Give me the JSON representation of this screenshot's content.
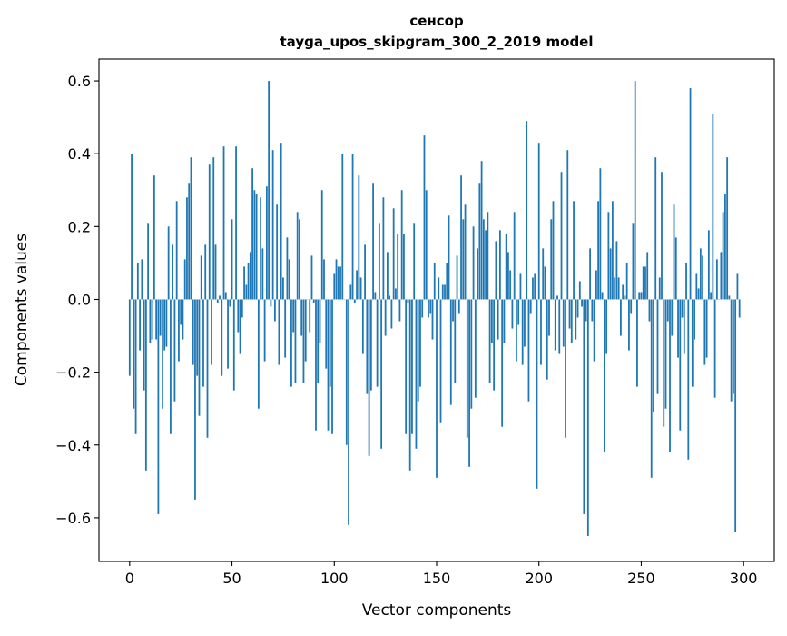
{
  "chart_data": {
    "type": "bar",
    "title": "сенсор",
    "subtitle": "tayga_upos_skipgram_300_2_2019 model",
    "xlabel": "Vector components",
    "ylabel": "Components values",
    "xlim": [
      -15,
      315
    ],
    "ylim": [
      -0.72,
      0.66
    ],
    "grid": false,
    "bar_color": "#1f77b4",
    "x_ticks": [
      0,
      50,
      100,
      150,
      200,
      250,
      300
    ],
    "x_tick_labels": [
      "0",
      "50",
      "100",
      "150",
      "200",
      "250",
      "300"
    ],
    "y_ticks": [
      -0.6,
      -0.4,
      -0.2,
      0.0,
      0.2,
      0.4,
      0.6
    ],
    "y_tick_labels": [
      "−0.6",
      "−0.4",
      "−0.2",
      "0.0",
      "0.2",
      "0.4",
      "0.6"
    ],
    "values": [
      -0.21,
      0.4,
      -0.3,
      -0.37,
      0.1,
      -0.14,
      0.11,
      -0.25,
      -0.47,
      0.21,
      -0.12,
      -0.11,
      0.34,
      -0.11,
      -0.59,
      -0.1,
      -0.3,
      -0.14,
      -0.13,
      0.2,
      -0.37,
      0.15,
      -0.28,
      0.27,
      -0.17,
      -0.07,
      -0.11,
      0.11,
      0.28,
      0.32,
      0.39,
      -0.18,
      -0.55,
      -0.21,
      -0.32,
      0.12,
      -0.24,
      0.15,
      -0.38,
      0.37,
      -0.18,
      0.39,
      0.15,
      -0.01,
      0.01,
      -0.21,
      0.42,
      0.02,
      -0.19,
      -0.02,
      0.22,
      -0.25,
      0.42,
      -0.09,
      -0.15,
      -0.05,
      0.09,
      0.04,
      0.1,
      0.13,
      0.36,
      0.3,
      0.29,
      -0.3,
      0.28,
      0.14,
      -0.17,
      0.31,
      0.6,
      -0.02,
      0.41,
      -0.06,
      0.26,
      -0.18,
      0.43,
      0.06,
      -0.16,
      0.17,
      0.11,
      -0.24,
      -0.09,
      -0.23,
      0.24,
      0.22,
      -0.1,
      -0.23,
      -0.17,
      0.0,
      -0.09,
      0.12,
      -0.01,
      -0.36,
      -0.23,
      -0.12,
      0.3,
      0.11,
      -0.19,
      -0.36,
      -0.24,
      -0.37,
      0.07,
      0.11,
      0.09,
      0.09,
      0.4,
      0.0,
      -0.4,
      -0.62,
      0.04,
      0.4,
      -0.01,
      0.08,
      0.34,
      0.06,
      -0.15,
      0.15,
      -0.26,
      -0.43,
      -0.25,
      0.32,
      0.02,
      -0.24,
      0.21,
      -0.41,
      0.28,
      -0.1,
      0.13,
      0.01,
      -0.08,
      0.25,
      0.03,
      0.18,
      -0.06,
      0.3,
      0.18,
      -0.37,
      -0.01,
      -0.47,
      -0.37,
      0.21,
      -0.41,
      -0.28,
      -0.24,
      -0.05,
      0.45,
      0.3,
      -0.05,
      -0.04,
      -0.11,
      0.1,
      -0.49,
      0.06,
      -0.34,
      0.04,
      0.04,
      0.1,
      0.23,
      -0.29,
      -0.06,
      -0.23,
      0.12,
      -0.04,
      0.34,
      0.22,
      0.26,
      -0.38,
      -0.46,
      -0.3,
      0.2,
      -0.27,
      0.14,
      0.32,
      0.38,
      0.22,
      0.19,
      0.24,
      -0.23,
      -0.12,
      -0.25,
      0.16,
      -0.11,
      0.19,
      -0.35,
      -0.12,
      0.18,
      0.13,
      0.08,
      -0.08,
      0.24,
      -0.17,
      -0.07,
      0.07,
      -0.18,
      -0.13,
      0.49,
      -0.28,
      -0.04,
      0.06,
      0.07,
      -0.52,
      0.43,
      -0.18,
      0.14,
      0.09,
      -0.22,
      -0.1,
      0.22,
      0.27,
      -0.14,
      0.01,
      -0.15,
      0.35,
      -0.13,
      -0.38,
      0.41,
      -0.08,
      -0.12,
      0.27,
      -0.11,
      -0.05,
      0.05,
      -0.02,
      -0.59,
      -0.06,
      -0.65,
      0.14,
      -0.06,
      -0.17,
      0.08,
      0.27,
      0.36,
      0.02,
      -0.42,
      -0.15,
      0.24,
      0.14,
      0.27,
      0.06,
      0.16,
      0.06,
      -0.1,
      0.04,
      0.01,
      0.1,
      -0.14,
      -0.04,
      0.21,
      0.6,
      -0.24,
      0.02,
      0.02,
      0.09,
      0.09,
      0.13,
      -0.06,
      -0.49,
      -0.31,
      0.39,
      -0.26,
      0.06,
      0.35,
      -0.35,
      -0.3,
      -0.06,
      -0.42,
      -0.1,
      0.26,
      0.17,
      -0.16,
      -0.36,
      -0.05,
      -0.15,
      0.1,
      -0.44,
      0.58,
      -0.24,
      -0.11,
      0.07,
      0.03,
      0.14,
      0.12,
      -0.18,
      -0.16,
      0.19,
      0.02,
      0.51,
      -0.27,
      0.11,
      0.0,
      0.13,
      0.24,
      0.29,
      0.39,
      0.01,
      -0.28,
      -0.26,
      -0.64,
      0.07,
      -0.05
    ]
  }
}
